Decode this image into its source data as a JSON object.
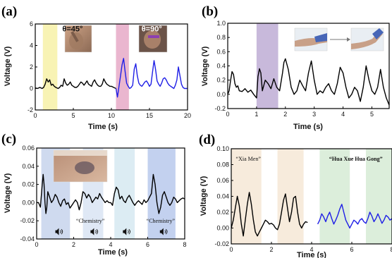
{
  "chart_data": [
    {
      "panel_label": "(a)",
      "type": "line",
      "xlabel": "Time (s)",
      "ylabel": "Voltage (V)",
      "xlim": [
        0,
        20
      ],
      "ylim": [
        -2,
        6
      ],
      "xticks": [
        0,
        5,
        10,
        15,
        20
      ],
      "yticks": [
        -2,
        0,
        2,
        4,
        6
      ],
      "bands": [
        {
          "x0": 1.0,
          "x1": 2.9,
          "color": "#f8f3b4"
        },
        {
          "x0": 10.6,
          "x1": 12.3,
          "color": "#eab6cf"
        }
      ],
      "annotations": [
        {
          "text": "θ=45°",
          "x": 4.9,
          "y": 5.3,
          "color": "#111111"
        },
        {
          "text": "θ=90°",
          "x": 15.3,
          "y": 5.3,
          "color": "#ffffff"
        }
      ],
      "series": [
        {
          "color": "#000000",
          "x": [
            0,
            0.3,
            0.6,
            0.9,
            1.1,
            1.3,
            1.5,
            1.7,
            1.9,
            2.1,
            2.3,
            2.5,
            2.7,
            3.0,
            3.2,
            3.4,
            3.6,
            3.8,
            4.0,
            4.2,
            4.4,
            4.6,
            4.8,
            5.0,
            5.2,
            5.4,
            5.6,
            5.8,
            6.0,
            6.2,
            6.4,
            6.6,
            6.8,
            7.0,
            7.2,
            7.4,
            7.6,
            7.8,
            8.0,
            8.2,
            8.4,
            8.6,
            8.8,
            9.0,
            9.2,
            9.4,
            9.6,
            9.8,
            10.0,
            10.3,
            10.6
          ],
          "y": [
            0.05,
            0.0,
            0.1,
            0.0,
            0.1,
            0.4,
            0.9,
            0.6,
            0.8,
            0.3,
            0.4,
            0.2,
            0.1,
            0.0,
            0.1,
            0.3,
            0.2,
            0.9,
            0.5,
            0.3,
            0.4,
            0.6,
            0.3,
            0.2,
            0.1,
            0.1,
            0.2,
            0.4,
            0.6,
            0.5,
            0.3,
            0.5,
            0.7,
            0.4,
            0.3,
            0.2,
            0.6,
            0.8,
            0.5,
            0.3,
            0.2,
            0.2,
            0.4,
            0.9,
            0.6,
            0.4,
            0.3,
            0.2,
            0.2,
            0.1,
            0.0
          ]
        },
        {
          "color": "#1f1fe6",
          "x": [
            10.6,
            10.8,
            11.0,
            11.2,
            11.4,
            11.6,
            11.8,
            12.0,
            12.2,
            12.4,
            12.6,
            12.8,
            13.0,
            13.2,
            13.4,
            13.6,
            13.8,
            14.0,
            14.2,
            14.4,
            14.6,
            14.8,
            15.0,
            15.2,
            15.4,
            15.6,
            15.8,
            16.0,
            16.2,
            16.4,
            16.6,
            16.8,
            17.0,
            17.2,
            17.4,
            17.6,
            17.8,
            18.0,
            18.2,
            18.4,
            18.6,
            18.8,
            19.0,
            19.2,
            19.4,
            19.6,
            19.8,
            20.0
          ],
          "y": [
            0.0,
            -0.8,
            0.2,
            1.2,
            2.2,
            2.8,
            1.6,
            0.5,
            0.2,
            0.0,
            0.1,
            0.3,
            1.8,
            2.3,
            1.2,
            0.5,
            0.3,
            0.2,
            0.4,
            0.6,
            0.7,
            0.5,
            0.2,
            0.4,
            1.5,
            2.6,
            1.8,
            0.7,
            0.4,
            0.2,
            0.5,
            0.9,
            1.0,
            0.8,
            0.5,
            0.3,
            0.2,
            0.1,
            0.0,
            0.3,
            0.8,
            2.0,
            1.2,
            0.4,
            0.1,
            0.0,
            0.0,
            0.0
          ]
        }
      ]
    },
    {
      "panel_label": "(b)",
      "type": "line",
      "xlabel": "Time (s)",
      "ylabel": "Voltage (V)",
      "xlim": [
        0,
        5.6
      ],
      "ylim": [
        -0.2,
        1.0
      ],
      "xticks": [
        0,
        1,
        2,
        3,
        4,
        5
      ],
      "yticks": [
        -0.2,
        0.0,
        0.2,
        0.4,
        0.6,
        0.8,
        1.0
      ],
      "tick_labels_y": [
        "-0.2",
        "0.0",
        "0.2",
        "0.4",
        "0.6",
        "0.8",
        "1.0"
      ],
      "bands": [
        {
          "x0": 1.0,
          "x1": 1.75,
          "color": "#c8b9db"
        }
      ],
      "series": [
        {
          "color": "#000000",
          "x": [
            0,
            0.05,
            0.1,
            0.15,
            0.2,
            0.25,
            0.3,
            0.35,
            0.4,
            0.5,
            0.6,
            0.7,
            0.8,
            0.9,
            1.0,
            1.05,
            1.1,
            1.15,
            1.2,
            1.3,
            1.4,
            1.5,
            1.6,
            1.7,
            1.8,
            1.9,
            1.95,
            2.0,
            2.1,
            2.2,
            2.3,
            2.4,
            2.5,
            2.6,
            2.7,
            2.8,
            2.9,
            3.0,
            3.1,
            3.2,
            3.3,
            3.4,
            3.5,
            3.6,
            3.7,
            3.8,
            3.9,
            4.0,
            4.1,
            4.2,
            4.3,
            4.4,
            4.5,
            4.6,
            4.7,
            4.8,
            4.9,
            5.0,
            5.1,
            5.2,
            5.3,
            5.4,
            5.5,
            5.6
          ],
          "y": [
            0.0,
            0.05,
            0.2,
            0.32,
            0.28,
            0.15,
            0.1,
            0.12,
            0.05,
            0.04,
            0.08,
            0.03,
            0.06,
            0.0,
            -0.05,
            0.25,
            0.36,
            0.3,
            0.05,
            0.2,
            0.15,
            0.08,
            0.22,
            0.1,
            0.05,
            0.3,
            0.45,
            0.5,
            0.35,
            0.1,
            0.0,
            0.05,
            0.2,
            0.12,
            0.05,
            0.3,
            0.47,
            0.2,
            0.0,
            0.05,
            0.02,
            0.1,
            0.15,
            0.05,
            0.0,
            0.15,
            0.38,
            0.3,
            0.1,
            -0.05,
            0.0,
            0.1,
            0.05,
            -0.1,
            0.1,
            0.4,
            0.2,
            0.05,
            0.0,
            0.1,
            0.35,
            0.1,
            -0.05,
            -0.15
          ]
        }
      ]
    },
    {
      "panel_label": "(c)",
      "type": "line",
      "xlabel": "Time (s)",
      "ylabel": "Voltage (V)",
      "xlim": [
        0,
        8
      ],
      "ylim": [
        -0.04,
        0.06
      ],
      "xticks": [
        0,
        2,
        4,
        6,
        8
      ],
      "yticks": [
        -0.04,
        -0.02,
        0.0,
        0.02,
        0.04,
        0.06
      ],
      "tick_labels_y": [
        "-0.04",
        "-0.02",
        "0.00",
        "0.02",
        "0.04",
        "0.06"
      ],
      "bands": [
        {
          "x0": 0.25,
          "x1": 1.8,
          "color": "#cfdaef"
        },
        {
          "x0": 2.5,
          "x1": 3.6,
          "color": "#dfe8f5"
        },
        {
          "x0": 4.2,
          "x1": 5.3,
          "color": "#dcecf3"
        },
        {
          "x0": 6.0,
          "x1": 7.5,
          "color": "#c3d1ef"
        }
      ],
      "annotations": [
        {
          "text": "“Chemistry”",
          "x": 2.9,
          "y": -0.022
        },
        {
          "text": "“Chemistry”",
          "x": 6.7,
          "y": -0.022
        }
      ],
      "speaker_icons_x": [
        1.2,
        3.1,
        4.85,
        6.85
      ],
      "speaker_icons_y": -0.032,
      "series": [
        {
          "color": "#000000",
          "x": [
            0,
            0.1,
            0.2,
            0.3,
            0.35,
            0.4,
            0.45,
            0.5,
            0.55,
            0.6,
            0.7,
            0.8,
            0.9,
            1.0,
            1.1,
            1.2,
            1.3,
            1.4,
            1.5,
            1.6,
            1.7,
            1.8,
            1.9,
            2.0,
            2.1,
            2.2,
            2.3,
            2.4,
            2.5,
            2.6,
            2.7,
            2.8,
            2.9,
            3.0,
            3.1,
            3.2,
            3.3,
            3.4,
            3.5,
            3.6,
            3.7,
            3.8,
            3.9,
            4.0,
            4.1,
            4.2,
            4.3,
            4.4,
            4.5,
            4.6,
            4.7,
            4.8,
            4.9,
            5.0,
            5.1,
            5.2,
            5.3,
            5.4,
            5.5,
            5.6,
            5.7,
            5.8,
            5.9,
            6.0,
            6.1,
            6.2,
            6.3,
            6.4,
            6.5,
            6.6,
            6.7,
            6.8,
            6.9,
            7.0,
            7.1,
            7.2,
            7.3,
            7.4,
            7.5,
            7.6,
            7.7,
            7.8,
            7.9,
            8.0
          ],
          "y": [
            0.0,
            0.0,
            -0.005,
            0.02,
            0.031,
            0.02,
            0.0,
            -0.012,
            -0.005,
            0.012,
            0.006,
            0.0,
            0.003,
            0.009,
            0.006,
            0.0,
            -0.004,
            0.002,
            0.004,
            -0.002,
            0.0,
            -0.006,
            -0.003,
            0.0,
            0.003,
            0.0,
            -0.008,
            0.0,
            0.012,
            0.01,
            0.005,
            0.009,
            0.006,
            0.0,
            0.003,
            0.006,
            0.004,
            0.01,
            0.006,
            0.003,
            0.0,
            0.002,
            0.0,
            0.0,
            -0.003,
            0.01,
            0.017,
            0.014,
            0.004,
            0.007,
            0.002,
            0.0,
            0.005,
            0.008,
            0.004,
            0.0,
            -0.003,
            0.0,
            0.002,
            0.0,
            -0.002,
            0.003,
            0.0,
            0.002,
            0.006,
            0.01,
            0.031,
            0.02,
            0.0,
            -0.012,
            -0.005,
            0.008,
            0.012,
            0.006,
            0.0,
            -0.003,
            0.0,
            0.006,
            0.004,
            0.0,
            0.002,
            0.004,
            0.005,
            0.004
          ]
        }
      ]
    },
    {
      "panel_label": "(d)",
      "type": "line",
      "xlabel": "Time (s)",
      "ylabel": "Voltage (V)",
      "xlim": [
        0,
        8
      ],
      "ylim": [
        -0.02,
        0.1
      ],
      "xticks": [
        0,
        2,
        4,
        6,
        8
      ],
      "yticks": [
        -0.02,
        0.0,
        0.02,
        0.04,
        0.06,
        0.08,
        0.1
      ],
      "tick_labels_y": [
        "-0.02",
        "0.00",
        "0.02",
        "0.04",
        "0.06",
        "0.08",
        "0.10"
      ],
      "bands": [
        {
          "x0": 0.0,
          "x1": 1.5,
          "color": "#f7ebdc"
        },
        {
          "x0": 2.3,
          "x1": 3.6,
          "color": "#f7ebdc"
        },
        {
          "x0": 4.4,
          "x1": 5.9,
          "color": "#dceedb"
        },
        {
          "x0": 6.7,
          "x1": 8.0,
          "color": "#dceedb"
        }
      ],
      "annotations": [
        {
          "text": "“Xia Men”",
          "x": 0.85,
          "y": 0.085,
          "color": "#111111"
        },
        {
          "text": "“Hua Xue Hua Gong”",
          "x": 6.2,
          "y": 0.085,
          "color": "#1f1fe6"
        }
      ],
      "series": [
        {
          "color": "#000000",
          "x": [
            0,
            0.1,
            0.2,
            0.3,
            0.4,
            0.5,
            0.6,
            0.7,
            0.8,
            0.9,
            1.0,
            1.1,
            1.2,
            1.3,
            1.4,
            1.5,
            1.6,
            1.7,
            1.8,
            1.9,
            2.0,
            2.1,
            2.2,
            2.3,
            2.4,
            2.5,
            2.6,
            2.7,
            2.8,
            2.9,
            3.0,
            3.1,
            3.2,
            3.3,
            3.4,
            3.5,
            3.6,
            3.7,
            3.8
          ],
          "y": [
            0.0,
            0.01,
            0.025,
            0.04,
            0.028,
            0.005,
            -0.01,
            0.01,
            0.03,
            0.045,
            0.03,
            0.01,
            -0.005,
            -0.01,
            -0.005,
            0.0,
            0.005,
            0.01,
            0.008,
            0.005,
            0.006,
            0.004,
            0.0,
            -0.002,
            0.005,
            0.02,
            0.035,
            0.043,
            0.025,
            0.008,
            0.02,
            0.038,
            0.04,
            0.02,
            0.005,
            0.0,
            0.005,
            0.008,
            0.007
          ]
        },
        {
          "color": "#1f1fe6",
          "x": [
            4.3,
            4.4,
            4.5,
            4.6,
            4.7,
            4.8,
            4.9,
            5.0,
            5.1,
            5.2,
            5.3,
            5.4,
            5.5,
            5.6,
            5.7,
            5.8,
            5.9,
            6.0,
            6.1,
            6.2,
            6.3,
            6.4,
            6.5,
            6.6,
            6.7,
            6.8,
            6.9,
            7.0,
            7.1,
            7.2,
            7.3,
            7.4,
            7.5,
            7.6,
            7.7,
            7.8,
            7.9,
            8.0
          ],
          "y": [
            0.005,
            0.01,
            0.018,
            0.014,
            0.008,
            0.015,
            0.02,
            0.012,
            0.005,
            0.01,
            0.016,
            0.024,
            0.03,
            0.02,
            0.01,
            0.005,
            0.0,
            0.005,
            0.01,
            0.008,
            0.005,
            0.01,
            0.012,
            0.008,
            0.006,
            0.012,
            0.02,
            0.015,
            0.008,
            0.012,
            0.018,
            0.012,
            0.006,
            0.01,
            0.016,
            0.014,
            0.01,
            0.012
          ]
        }
      ]
    }
  ]
}
